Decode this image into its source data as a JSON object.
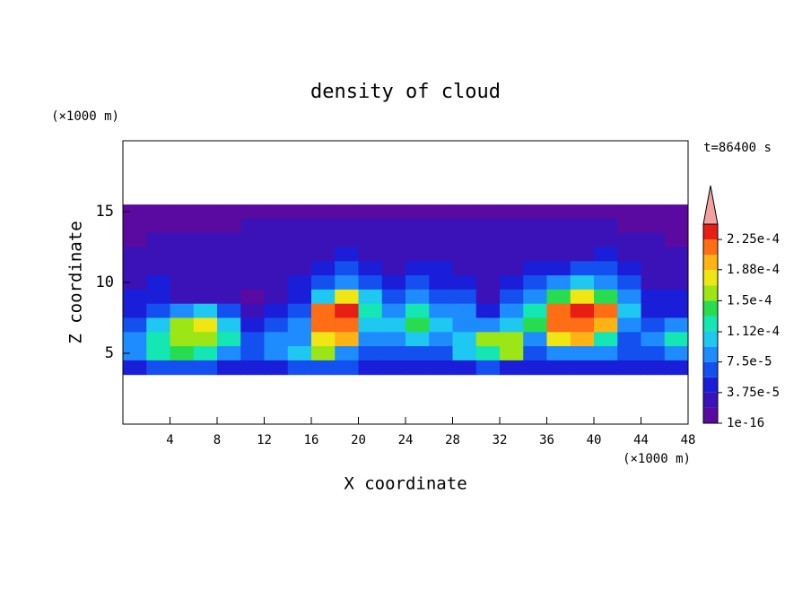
{
  "chart_data": {
    "type": "contour",
    "title": "density of cloud",
    "x_label": "X coordinate",
    "y_label": "Z coordinate",
    "x_unit": "(×1000 m)",
    "y_unit": "(×1000 m)",
    "annotation": "t=86400 s",
    "xlim": [
      0,
      48
    ],
    "ylim": [
      0,
      20
    ],
    "xticks": [
      4,
      8,
      12,
      16,
      20,
      24,
      28,
      32,
      36,
      40,
      44,
      48
    ],
    "yticks": [
      5,
      10,
      15
    ],
    "x": [
      1,
      3,
      5,
      7,
      9,
      11,
      13,
      15,
      17,
      19,
      21,
      23,
      25,
      27,
      29,
      31,
      33,
      35,
      37,
      39,
      41,
      43,
      45,
      47
    ],
    "y": [
      15,
      14,
      13,
      12,
      11,
      10,
      9,
      8,
      7,
      6,
      5,
      4
    ],
    "z": [
      [
        9e-06,
        9e-06,
        9e-06,
        9e-06,
        9e-06,
        9e-06,
        9e-06,
        9e-06,
        9e-06,
        9e-06,
        9e-06,
        9e-06,
        9e-06,
        9e-06,
        9e-06,
        9e-06,
        9e-06,
        9e-06,
        9e-06,
        9e-06,
        9e-06,
        9e-06,
        9e-06,
        9e-06
      ],
      [
        9e-06,
        9e-06,
        9e-06,
        9e-06,
        9e-06,
        2.8e-05,
        2.8e-05,
        2.8e-05,
        2.8e-05,
        2.8e-05,
        2.8e-05,
        2.8e-05,
        2.8e-05,
        2.8e-05,
        2.8e-05,
        2.8e-05,
        2.8e-05,
        2.8e-05,
        2.8e-05,
        2.8e-05,
        2.8e-05,
        9e-06,
        9e-06,
        9e-06
      ],
      [
        9e-06,
        2.8e-05,
        2.8e-05,
        2.8e-05,
        2.8e-05,
        2.8e-05,
        2.8e-05,
        2.8e-05,
        2.8e-05,
        2.8e-05,
        2.8e-05,
        2.8e-05,
        2.8e-05,
        2.8e-05,
        2.8e-05,
        2.8e-05,
        2.8e-05,
        2.8e-05,
        2.8e-05,
        2.8e-05,
        2.8e-05,
        2.8e-05,
        2.8e-05,
        9e-06
      ],
      [
        2.8e-05,
        2.8e-05,
        2.8e-05,
        2.8e-05,
        2.8e-05,
        2.8e-05,
        2.8e-05,
        2.8e-05,
        2.8e-05,
        4.7e-05,
        2.8e-05,
        2.8e-05,
        2.8e-05,
        2.8e-05,
        2.8e-05,
        2.8e-05,
        2.8e-05,
        2.8e-05,
        2.8e-05,
        2.8e-05,
        4.7e-05,
        2.8e-05,
        2.8e-05,
        2.8e-05
      ],
      [
        2.8e-05,
        2.8e-05,
        2.8e-05,
        2.8e-05,
        2.8e-05,
        2.8e-05,
        2.8e-05,
        2.8e-05,
        4.7e-05,
        6.6e-05,
        4.7e-05,
        2.8e-05,
        4.7e-05,
        4.7e-05,
        2.8e-05,
        2.8e-05,
        2.8e-05,
        4.7e-05,
        4.7e-05,
        6.6e-05,
        6.6e-05,
        4.7e-05,
        2.8e-05,
        2.8e-05
      ],
      [
        2.8e-05,
        4.7e-05,
        2.8e-05,
        2.8e-05,
        2.8e-05,
        2.8e-05,
        2.8e-05,
        4.7e-05,
        6.6e-05,
        8.4e-05,
        6.6e-05,
        4.7e-05,
        6.6e-05,
        4.7e-05,
        4.7e-05,
        2.8e-05,
        4.7e-05,
        6.6e-05,
        8.4e-05,
        0.000103,
        8.4e-05,
        6.6e-05,
        2.8e-05,
        2.8e-05
      ],
      [
        4.7e-05,
        4.7e-05,
        2.8e-05,
        2.8e-05,
        2.8e-05,
        9e-06,
        2.8e-05,
        4.7e-05,
        0.000103,
        0.000178,
        0.000103,
        6.6e-05,
        8.4e-05,
        6.6e-05,
        6.6e-05,
        2.8e-05,
        6.6e-05,
        8.4e-05,
        0.000141,
        0.000178,
        0.000141,
        8.4e-05,
        4.7e-05,
        4.7e-05
      ],
      [
        4.7e-05,
        6.6e-05,
        8.4e-05,
        0.000103,
        6.6e-05,
        2.8e-05,
        4.7e-05,
        6.6e-05,
        0.000216,
        0.000234,
        0.000122,
        8.4e-05,
        0.000122,
        8.4e-05,
        8.4e-05,
        4.7e-05,
        8.4e-05,
        0.000122,
        0.000216,
        0.000234,
        0.000216,
        0.000103,
        4.7e-05,
        4.7e-05
      ],
      [
        6.6e-05,
        0.000103,
        0.000159,
        0.000178,
        0.000103,
        4.7e-05,
        6.6e-05,
        8.4e-05,
        0.000216,
        0.000216,
        0.000103,
        0.000103,
        0.000141,
        0.000103,
        8.4e-05,
        8.4e-05,
        0.000103,
        0.000141,
        0.000216,
        0.000216,
        0.000197,
        8.4e-05,
        6.6e-05,
        8.4e-05
      ],
      [
        8.4e-05,
        0.000122,
        0.000159,
        0.000159,
        0.000122,
        6.6e-05,
        8.4e-05,
        8.4e-05,
        0.000178,
        0.000197,
        8.4e-05,
        8.4e-05,
        0.000103,
        8.4e-05,
        0.000103,
        0.000159,
        0.000159,
        8.4e-05,
        0.000178,
        0.000197,
        0.000122,
        6.6e-05,
        8.4e-05,
        0.000122
      ],
      [
        8.4e-05,
        0.000122,
        0.000141,
        0.000122,
        8.4e-05,
        6.6e-05,
        8.4e-05,
        0.000103,
        0.000159,
        8.4e-05,
        6.6e-05,
        6.6e-05,
        6.6e-05,
        6.6e-05,
        0.000103,
        0.000122,
        0.000159,
        6.6e-05,
        8.4e-05,
        8.4e-05,
        8.4e-05,
        6.6e-05,
        6.6e-05,
        8.4e-05
      ],
      [
        4.7e-05,
        6.6e-05,
        6.6e-05,
        6.6e-05,
        4.7e-05,
        4.7e-05,
        4.7e-05,
        6.6e-05,
        6.6e-05,
        6.6e-05,
        4.7e-05,
        4.7e-05,
        4.7e-05,
        4.7e-05,
        4.7e-05,
        6.6e-05,
        4.7e-05,
        4.7e-05,
        4.7e-05,
        4.7e-05,
        4.7e-05,
        4.7e-05,
        4.7e-05,
        4.7e-05
      ]
    ],
    "levels": [
      0,
      1.875e-05,
      3.75e-05,
      5.625e-05,
      7.5e-05,
      9.375e-05,
      0.0001125,
      0.00013125,
      0.00015,
      0.00016875,
      0.0001875,
      0.00020625,
      0.000225,
      0.00024375
    ],
    "colors": [
      "#5a0aa0",
      "#3a12b8",
      "#1a1ed8",
      "#1450f0",
      "#1e8cff",
      "#1ec8f0",
      "#14e6b4",
      "#28dc50",
      "#9be614",
      "#f0e614",
      "#ffb414",
      "#ff6e14",
      "#e61e14"
    ],
    "extend_color": "#f4a0a0",
    "colorbar_ticks": [
      {
        "value": 1e-16,
        "label": "1e-16"
      },
      {
        "value": 3.75e-05,
        "label": "3.75e-5"
      },
      {
        "value": 7.5e-05,
        "label": "7.5e-5"
      },
      {
        "value": 0.000112,
        "label": "1.12e-4"
      },
      {
        "value": 0.00015,
        "label": "1.5e-4"
      },
      {
        "value": 0.000188,
        "label": "1.88e-4"
      },
      {
        "value": 0.000225,
        "label": "2.25e-4"
      }
    ]
  }
}
